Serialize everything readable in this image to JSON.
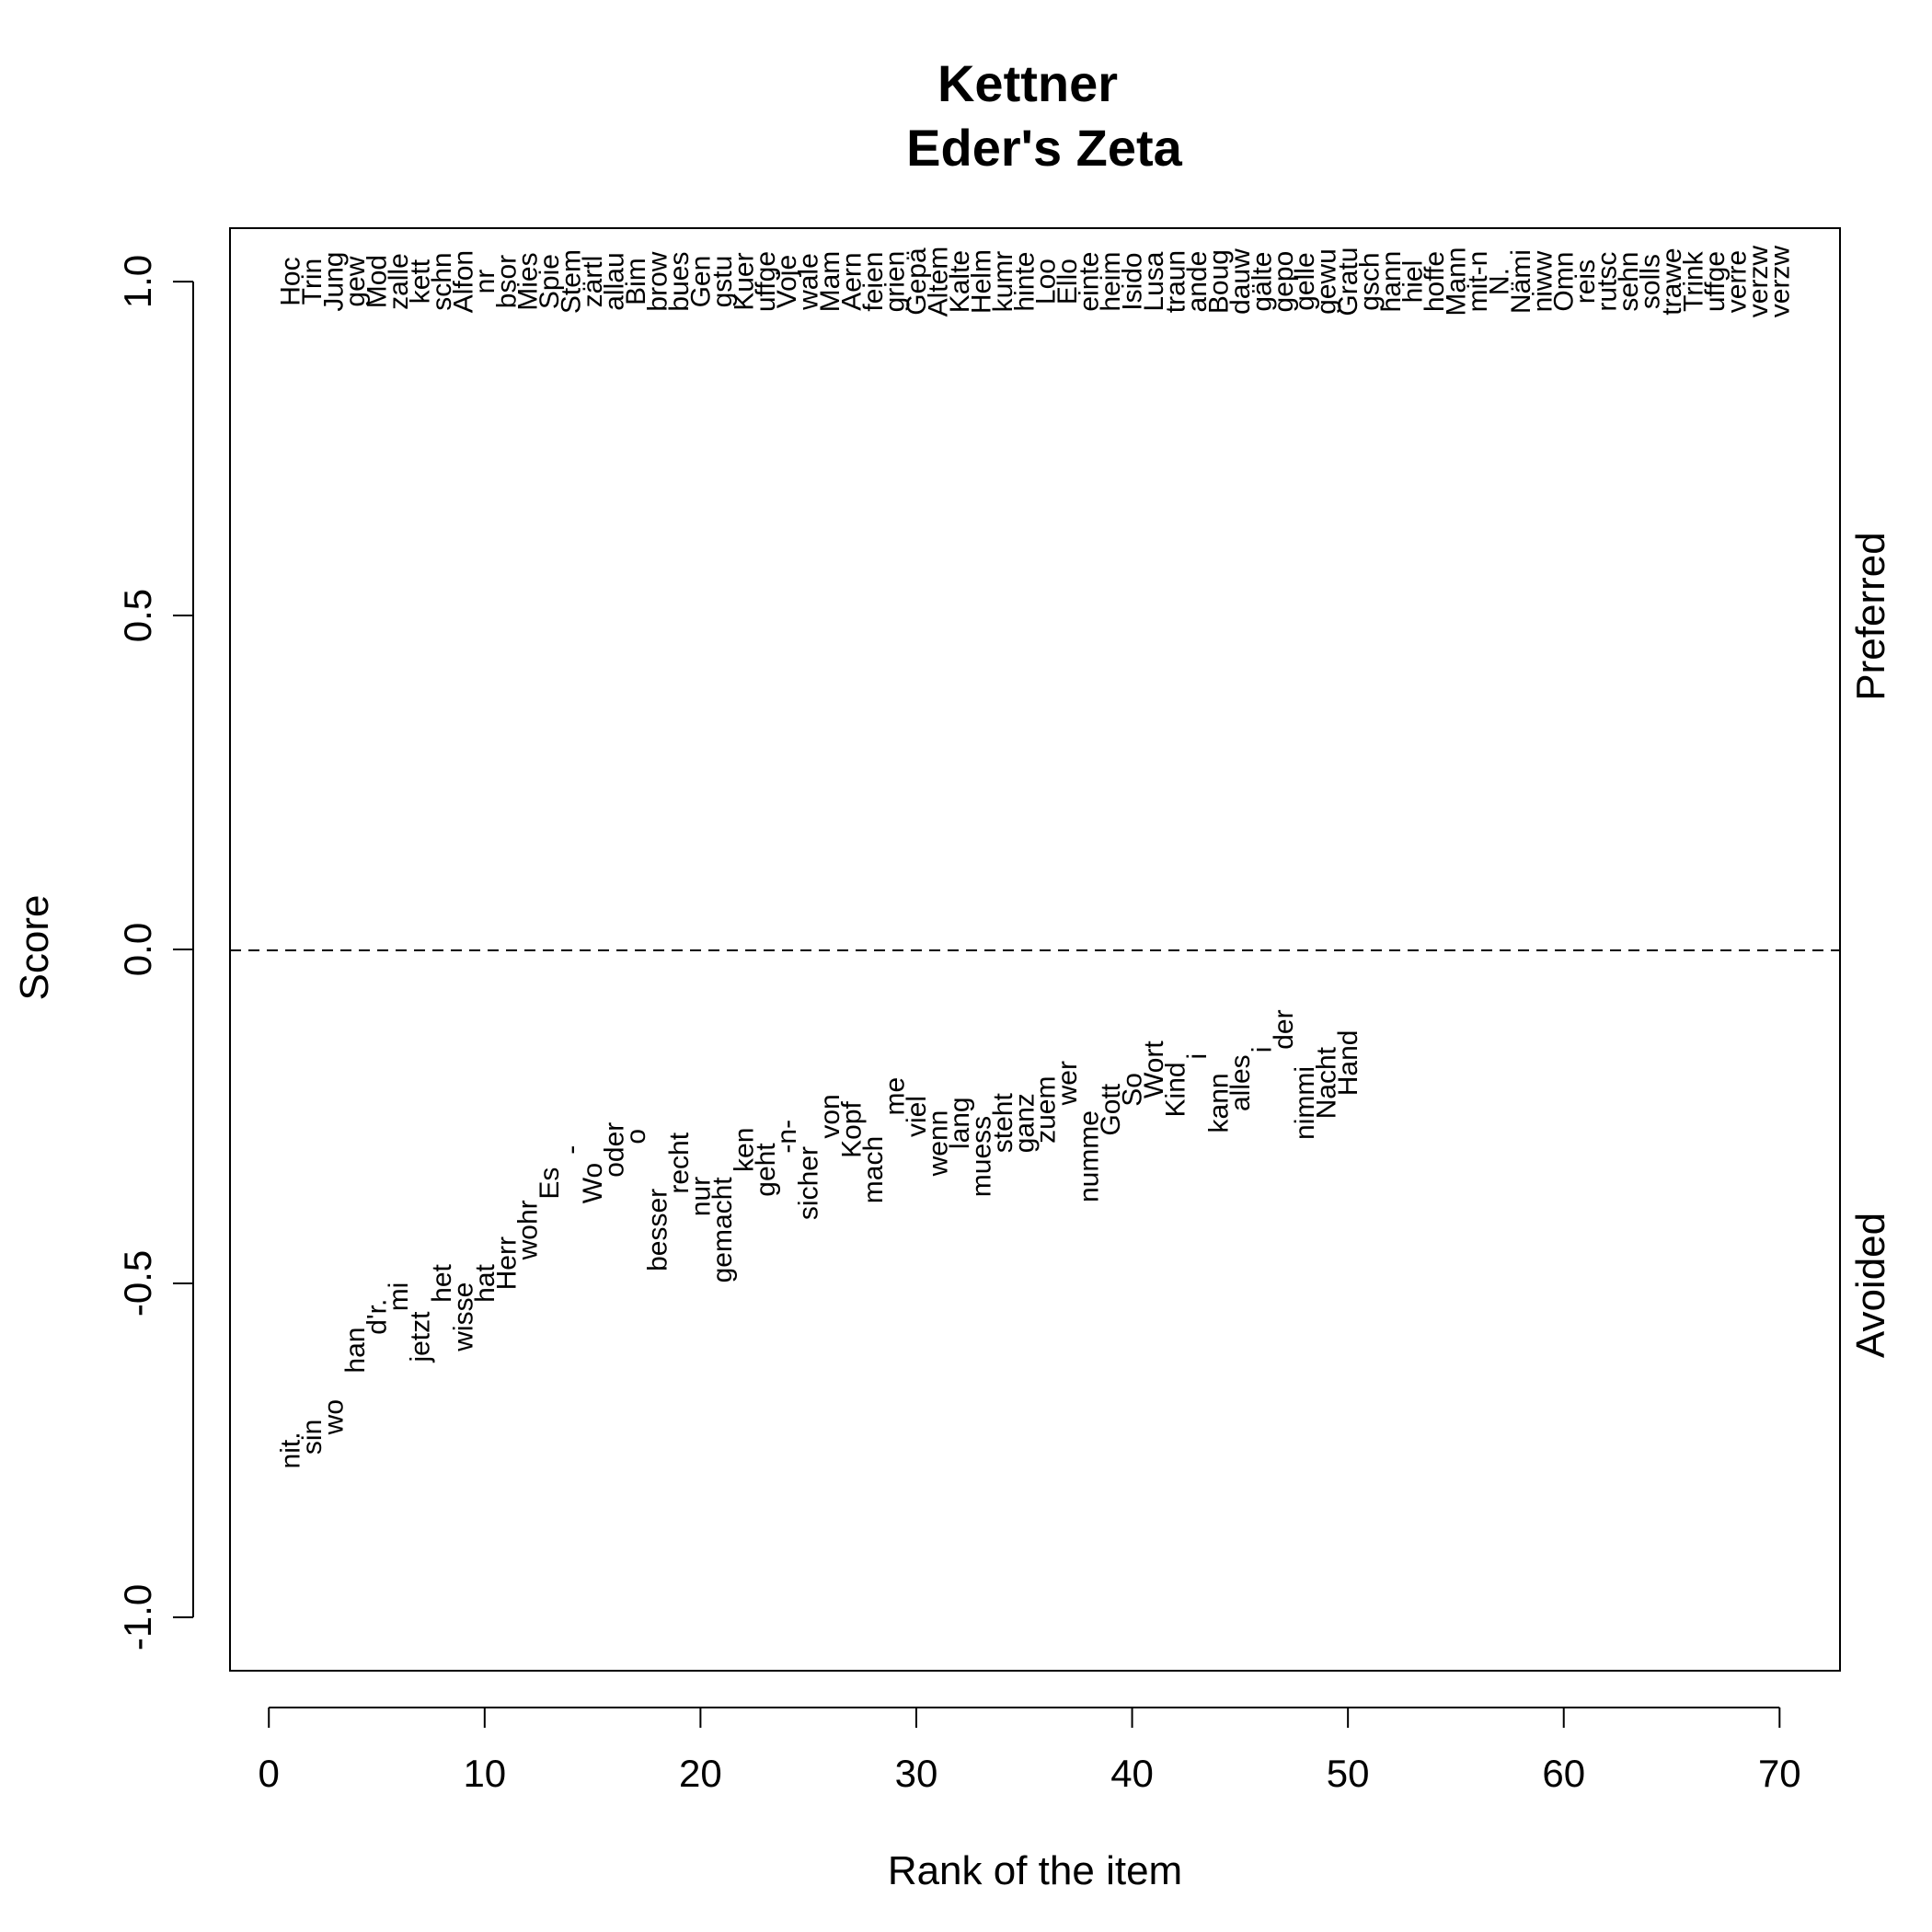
{
  "chart_data": {
    "type": "scatter",
    "title": "Kettner",
    "subtitle": "Eder's Zeta",
    "xlabel": "Rank of the item",
    "ylabel": "Score",
    "xlim": [
      -1.8,
      72.8
    ],
    "ylim": [
      -1.08,
      1.08
    ],
    "xticks": [
      0,
      10,
      20,
      30,
      40,
      50,
      60,
      70
    ],
    "yticks": [
      -1.0,
      -0.5,
      0.0,
      0.5,
      1.0
    ],
    "xtick_labels": [
      "0",
      "10",
      "20",
      "30",
      "40",
      "50",
      "60",
      "70"
    ],
    "ytick_labels": [
      "-1.0",
      "-0.5",
      "0.0",
      "0.5",
      "1.0"
    ],
    "reference_line": {
      "y": 0.0,
      "style": "dashed"
    },
    "side_labels": {
      "top": "Preferred",
      "bottom": "Avoided"
    },
    "grid": false,
    "series": [
      {
        "name": "Preferred",
        "x": [
          1,
          2,
          3,
          4,
          5,
          6,
          7,
          8,
          9,
          10,
          11,
          12,
          13,
          14,
          15,
          16,
          17,
          18,
          19,
          20,
          21,
          22,
          23,
          24,
          25,
          26,
          27,
          28,
          29,
          30,
          31,
          32,
          33,
          34,
          35,
          36,
          37,
          38,
          39,
          40,
          41,
          42,
          43,
          44,
          45,
          46,
          47,
          48,
          49,
          50,
          51,
          52,
          53,
          54,
          55,
          56,
          57,
          58,
          59,
          60,
          61,
          62,
          63,
          64,
          65,
          66,
          67,
          68,
          69,
          70
        ],
        "y": [
          1,
          1,
          1,
          1,
          1,
          1,
          1,
          1,
          1,
          1,
          1,
          1,
          1,
          1,
          1,
          1,
          1,
          1,
          1,
          1,
          1,
          1,
          1,
          1,
          1,
          1,
          1,
          1,
          1,
          1,
          1,
          1,
          1,
          1,
          1,
          1,
          1,
          1,
          1,
          1,
          1,
          1,
          1,
          1,
          1,
          1,
          1,
          1,
          1,
          1,
          1,
          1,
          1,
          1,
          1,
          1,
          1,
          1,
          1,
          1,
          1,
          1,
          1,
          1,
          1,
          1,
          1,
          1,
          1,
          1
        ],
        "labels": [
          "Hoc",
          "Trin",
          "Jung",
          "gew",
          "Mod",
          "zalle",
          "kett",
          "schn",
          "Alfon",
          "nr",
          "bsor",
          "Mies",
          "Spie",
          "Stem",
          "zärtl",
          "allau",
          "Bim",
          "brow",
          "bues",
          "Gen",
          "gstu",
          "Kuer",
          "uffge",
          "Voje",
          "wale",
          "Mam",
          "Aern",
          "feien",
          "grien",
          "Gepä",
          "Altem",
          "Kalte",
          "Helm",
          "kumr",
          "hinte",
          "Loo",
          "Ello",
          "einte",
          "heim",
          "Isido",
          "Lusa",
          "traun",
          "ande",
          "Boug",
          "dauw",
          "gälte",
          "gepo",
          "gelle",
          "gewu",
          "Gratu",
          "gsch",
          "hann",
          "hiel",
          "hoffe",
          "Mann",
          "mit-n",
          "N.",
          "Nämi",
          "niww",
          "Omn",
          "reis",
          "rutsc",
          "sehn",
          "solls",
          "trawe",
          "Trink",
          "uffge",
          "verre",
          "verzw",
          "verzw"
        ]
      },
      {
        "name": "Avoided",
        "x": [
          1,
          2,
          3,
          4,
          5,
          6,
          7,
          8,
          9,
          10,
          11,
          12,
          13,
          14,
          15,
          16,
          17,
          18,
          19,
          20,
          21,
          22,
          23,
          24,
          25,
          26,
          27,
          28,
          29,
          30,
          31,
          32,
          33,
          34,
          35,
          36,
          37,
          38,
          39,
          40,
          41,
          42,
          43,
          44,
          45,
          46,
          47,
          48,
          49,
          50
        ],
        "y": [
          -0.75,
          -0.73,
          -0.7,
          -0.6,
          -0.55,
          -0.52,
          -0.58,
          -0.5,
          -0.55,
          -0.5,
          -0.47,
          -0.42,
          -0.35,
          -0.3,
          -0.35,
          -0.3,
          -0.28,
          -0.42,
          -0.32,
          -0.37,
          -0.42,
          -0.3,
          -0.33,
          -0.28,
          -0.35,
          -0.25,
          -0.27,
          -0.33,
          -0.22,
          -0.25,
          -0.29,
          -0.26,
          -0.31,
          -0.26,
          -0.26,
          -0.24,
          -0.2,
          -0.31,
          -0.24,
          -0.21,
          -0.18,
          -0.21,
          -0.16,
          -0.23,
          -0.2,
          -0.15,
          -0.12,
          -0.23,
          -0.2,
          -0.17
        ],
        "labels": [
          "nit.",
          "sin",
          "wo",
          "han",
          "d'r.",
          "mi",
          "jetzt",
          "het",
          "wisse",
          "hat",
          "Herr",
          "wohr",
          "Es",
          "-",
          "Wo",
          "oder",
          "o",
          "besser",
          "recht",
          "nur",
          "gemacht",
          "ken",
          "geht",
          "-n-",
          "sicher",
          "von",
          "Kopf",
          "mach",
          "me",
          "viel",
          "wenn",
          "lang",
          "muess",
          "steht",
          "ganz",
          "zuem",
          "wer",
          "numme",
          "Gott",
          "So",
          "Wort",
          "Kind",
          "i",
          "kann",
          "alles",
          "i",
          "der",
          "nimmi",
          "Nacht",
          "Hand"
        ]
      }
    ]
  }
}
